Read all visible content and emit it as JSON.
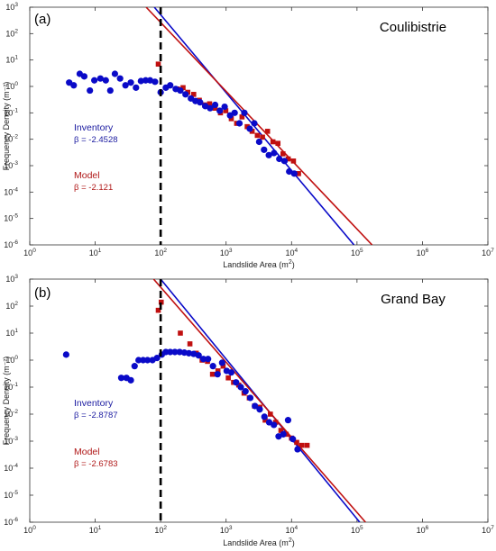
{
  "colors": {
    "inventory": "#0a0ac8",
    "model": "#c01010",
    "inventory_text": "#1a1aa0",
    "model_text": "#b01818",
    "axis": "#333333",
    "cutoff": "#000000"
  },
  "chart_data": [
    {
      "type": "scatter",
      "panel_label": "(a)",
      "title": "Coulibistrie",
      "xlabel_main": "Landslide Area (m",
      "xlabel_sup": "2",
      "xlabel_end": ")",
      "ylabel": "Frequency Density (m⁻²)",
      "xscale": "log",
      "yscale": "log",
      "xlim": [
        1,
        10000000
      ],
      "ylim": [
        1e-06,
        1000
      ],
      "x_ticks": [
        "10^0",
        "10^1",
        "10^2",
        "10^3",
        "10^4",
        "10^5",
        "10^6",
        "10^7"
      ],
      "y_ticks": [
        "10^-6",
        "10^-5",
        "10^-4",
        "10^-3",
        "10^-2",
        "10^-1",
        "10^0",
        "10^1",
        "10^2",
        "10^3"
      ],
      "cutoff_x": 100,
      "legend": {
        "inventory_label": "Inventory",
        "inventory_beta": "β = -2.4528",
        "model_label": "Model",
        "model_beta": "β = -2.121"
      },
      "series": [
        {
          "name": "Inventory",
          "marker": "circle",
          "points": [
            [
              4,
              1.4
            ],
            [
              4.7,
              1.1
            ],
            [
              5.8,
              3
            ],
            [
              6.8,
              2.4
            ],
            [
              8.3,
              0.7
            ],
            [
              9.7,
              1.7
            ],
            [
              12,
              2
            ],
            [
              14.5,
              1.7
            ],
            [
              17,
              0.7
            ],
            [
              20,
              3
            ],
            [
              24,
              2
            ],
            [
              29,
              1.1
            ],
            [
              35,
              1.4
            ],
            [
              42,
              0.9
            ],
            [
              50,
              1.6
            ],
            [
              59,
              1.7
            ],
            [
              69,
              1.7
            ],
            [
              82,
              1.5
            ],
            [
              100,
              0.6
            ],
            [
              120,
              0.9
            ],
            [
              140,
              1.1
            ],
            [
              170,
              0.8
            ],
            [
              200,
              0.7
            ],
            [
              240,
              0.5
            ],
            [
              290,
              0.35
            ],
            [
              340,
              0.28
            ],
            [
              400,
              0.25
            ],
            [
              480,
              0.18
            ],
            [
              570,
              0.15
            ],
            [
              680,
              0.2
            ],
            [
              800,
              0.12
            ],
            [
              950,
              0.17
            ],
            [
              1150,
              0.08
            ],
            [
              1350,
              0.1
            ],
            [
              1600,
              0.04
            ],
            [
              1900,
              0.1
            ],
            [
              2300,
              0.025
            ],
            [
              2700,
              0.04
            ],
            [
              3200,
              0.008
            ],
            [
              3800,
              0.004
            ],
            [
              4500,
              0.0025
            ],
            [
              5400,
              0.003
            ],
            [
              6500,
              0.0018
            ],
            [
              7800,
              0.0015
            ],
            [
              9200,
              0.0006
            ],
            [
              11000,
              0.0005
            ]
          ]
        },
        {
          "name": "Model",
          "marker": "square",
          "points": [
            [
              92,
              7
            ],
            [
              180,
              0.8
            ],
            [
              220,
              0.9
            ],
            [
              260,
              0.6
            ],
            [
              320,
              0.5
            ],
            [
              390,
              0.3
            ],
            [
              470,
              0.2
            ],
            [
              560,
              0.22
            ],
            [
              680,
              0.15
            ],
            [
              820,
              0.1
            ],
            [
              990,
              0.12
            ],
            [
              1200,
              0.06
            ],
            [
              1450,
              0.04
            ],
            [
              1750,
              0.07
            ],
            [
              2100,
              0.03
            ],
            [
              2500,
              0.02
            ],
            [
              3000,
              0.014
            ],
            [
              3600,
              0.012
            ],
            [
              4300,
              0.02
            ],
            [
              5200,
              0.008
            ],
            [
              6200,
              0.007
            ],
            [
              7400,
              0.0028
            ],
            [
              8900,
              0.0018
            ],
            [
              10700,
              0.0015
            ],
            [
              12800,
              0.0005
            ]
          ]
        }
      ],
      "fit_lines": [
        {
          "name": "Inventory",
          "beta": -2.4528,
          "x": [
            80,
            90000
          ],
          "y": [
            1000,
            1e-06
          ]
        },
        {
          "name": "Model",
          "beta": -2.121,
          "x": [
            60,
            170000
          ],
          "y": [
            1000,
            1e-06
          ]
        }
      ]
    },
    {
      "type": "scatter",
      "panel_label": "(b)",
      "title": "Grand Bay",
      "xlabel_main": "Landslide Area (m",
      "xlabel_sup": "2",
      "xlabel_end": ")",
      "ylabel": "Frequency Density (m⁻²)",
      "xscale": "log",
      "yscale": "log",
      "xlim": [
        1,
        10000000
      ],
      "ylim": [
        1e-06,
        1000
      ],
      "x_ticks": [
        "10^0",
        "10^1",
        "10^2",
        "10^3",
        "10^4",
        "10^5",
        "10^6",
        "10^7"
      ],
      "y_ticks": [
        "10^-6",
        "10^-5",
        "10^-4",
        "10^-3",
        "10^-2",
        "10^-1",
        "10^0",
        "10^1",
        "10^2",
        "10^3"
      ],
      "cutoff_x": 100,
      "legend": {
        "inventory_label": "Inventory",
        "inventory_beta": "β = -2.8787",
        "model_label": "Model",
        "model_beta": "β = -2.6783"
      },
      "series": [
        {
          "name": "Inventory",
          "marker": "circle",
          "points": [
            [
              3.6,
              1.6
            ],
            [
              25,
              0.22
            ],
            [
              30,
              0.22
            ],
            [
              35,
              0.18
            ],
            [
              40,
              0.6
            ],
            [
              46,
              1
            ],
            [
              54,
              1
            ],
            [
              63,
              1
            ],
            [
              75,
              1
            ],
            [
              88,
              1.2
            ],
            [
              104,
              1.6
            ],
            [
              120,
              2
            ],
            [
              140,
              2
            ],
            [
              165,
              2
            ],
            [
              195,
              2
            ],
            [
              230,
              1.9
            ],
            [
              270,
              1.8
            ],
            [
              320,
              1.7
            ],
            [
              380,
              1.5
            ],
            [
              450,
              1.1
            ],
            [
              530,
              1.1
            ],
            [
              630,
              0.6
            ],
            [
              740,
              0.3
            ],
            [
              870,
              0.8
            ],
            [
              1020,
              0.4
            ],
            [
              1200,
              0.35
            ],
            [
              1420,
              0.15
            ],
            [
              1680,
              0.1
            ],
            [
              1980,
              0.07
            ],
            [
              2340,
              0.04
            ],
            [
              2760,
              0.02
            ],
            [
              3260,
              0.015
            ],
            [
              3850,
              0.008
            ],
            [
              4550,
              0.005
            ],
            [
              5370,
              0.004
            ],
            [
              6340,
              0.0015
            ],
            [
              7490,
              0.0018
            ],
            [
              8850,
              0.006
            ],
            [
              10450,
              0.0012
            ],
            [
              12350,
              0.0005
            ]
          ]
        },
        {
          "name": "Model",
          "marker": "square",
          "points": [
            [
              92,
              70
            ],
            [
              102,
              140
            ],
            [
              200,
              10
            ],
            [
              280,
              4
            ],
            [
              350,
              1.8
            ],
            [
              430,
              1
            ],
            [
              520,
              0.9
            ],
            [
              620,
              0.3
            ],
            [
              750,
              0.4
            ],
            [
              900,
              0.6
            ],
            [
              1080,
              0.22
            ],
            [
              1300,
              0.15
            ],
            [
              1560,
              0.12
            ],
            [
              1880,
              0.06
            ],
            [
              2260,
              0.04
            ],
            [
              2720,
              0.02
            ],
            [
              3280,
              0.018
            ],
            [
              3950,
              0.006
            ],
            [
              4750,
              0.01
            ],
            [
              5720,
              0.005
            ],
            [
              6880,
              0.0025
            ],
            [
              8280,
              0.0018
            ],
            [
              9970,
              0.0013
            ],
            [
              12000,
              0.0009
            ],
            [
              14400,
              0.0007
            ],
            [
              17300,
              0.0007
            ]
          ]
        }
      ],
      "fit_lines": [
        {
          "name": "Inventory",
          "beta": -2.8787,
          "x": [
            100,
            110000
          ],
          "y": [
            1000,
            1e-06
          ]
        },
        {
          "name": "Model",
          "beta": -2.6783,
          "x": [
            78,
            135000
          ],
          "y": [
            1000,
            1e-06
          ]
        }
      ]
    }
  ]
}
